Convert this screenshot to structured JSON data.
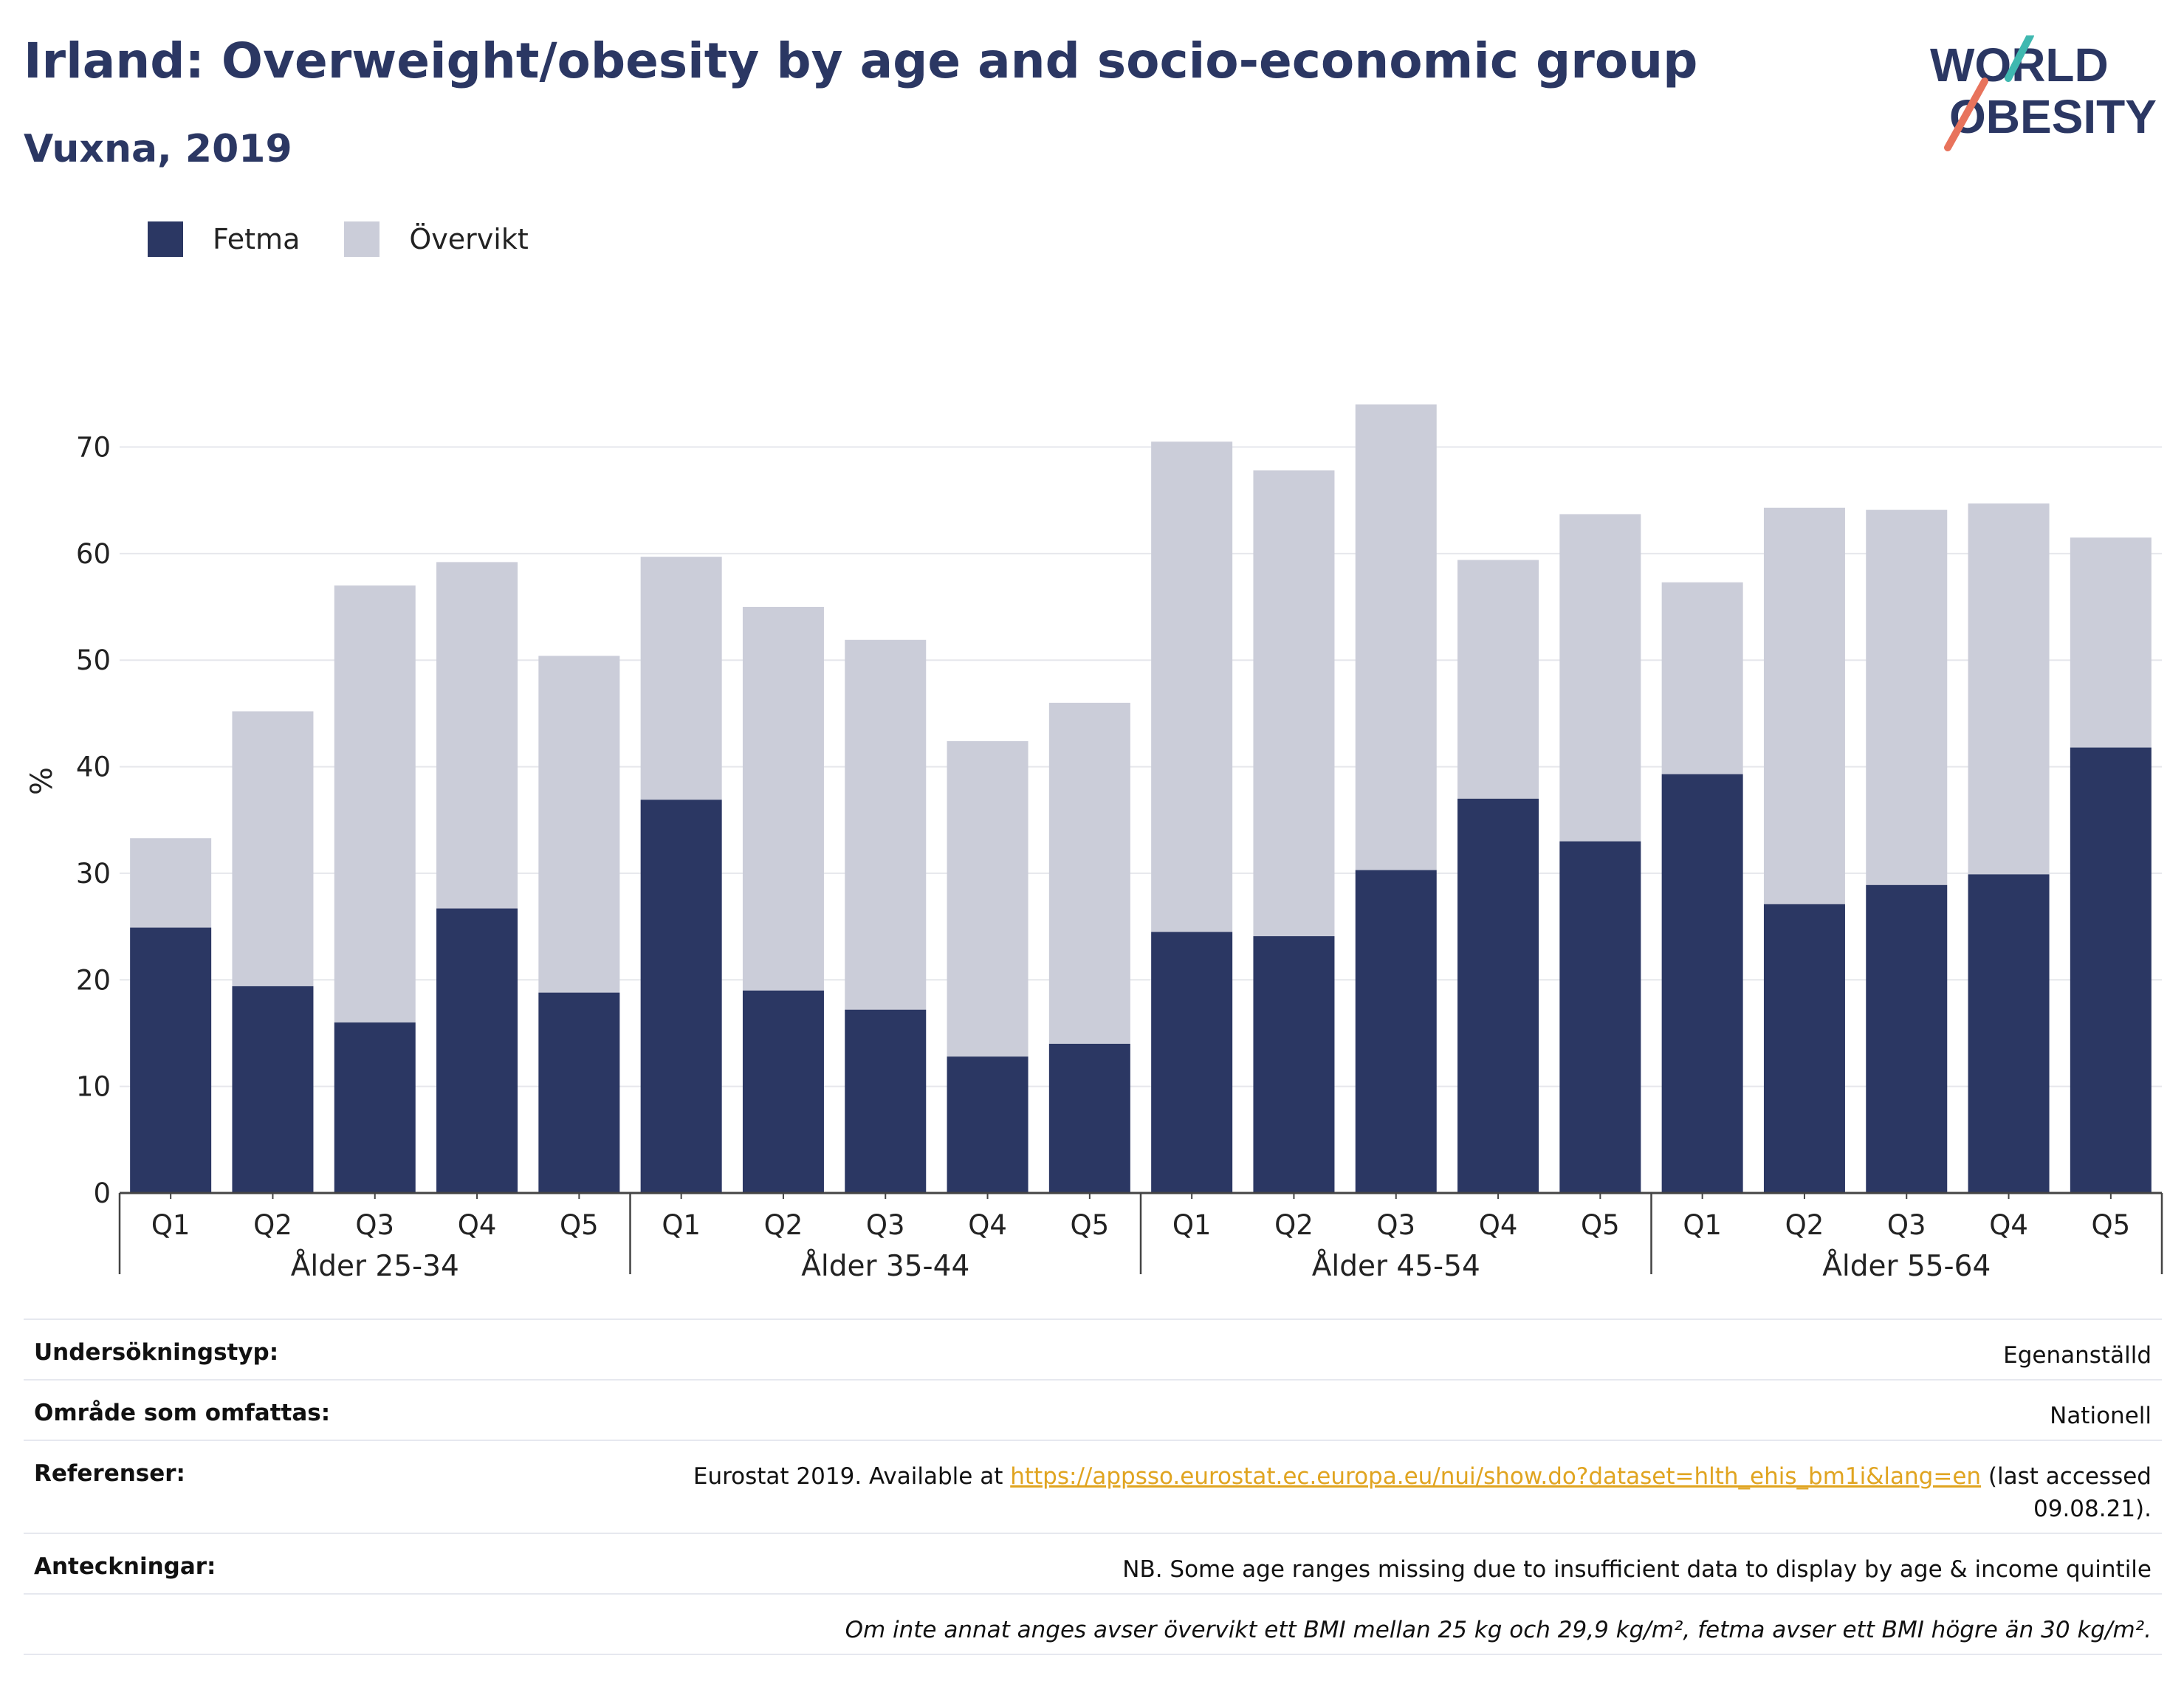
{
  "header": {
    "title": "Irland: Overweight/obesity by age and socio-economic group",
    "subtitle": "Vuxna, 2019"
  },
  "logo": {
    "line1": "WORLD",
    "line2": "OBESITY"
  },
  "colors": {
    "fetma": "#2b3763",
    "overvikt": "#cbcdd9",
    "title": "#2b3763",
    "link": "#e0a420",
    "logo_teal": "#3fb8b0",
    "logo_coral": "#e8735c"
  },
  "chart_data": {
    "type": "bar",
    "stacked": true,
    "title": "Irland: Overweight/obesity by age and socio-economic group",
    "subtitle": "Vuxna, 2019",
    "ylabel": "%",
    "ylim": [
      0,
      78
    ],
    "yticks": [
      0,
      10,
      20,
      30,
      40,
      50,
      60,
      70
    ],
    "grid": true,
    "legend_position": "top-left",
    "groups": [
      {
        "label": "Ålder 25-34",
        "categories": [
          "Q1",
          "Q2",
          "Q3",
          "Q4",
          "Q5"
        ],
        "fetma": [
          24.9,
          19.4,
          16.0,
          26.7,
          18.8
        ],
        "total": [
          33.3,
          45.2,
          57.0,
          59.2,
          50.4
        ]
      },
      {
        "label": "Ålder 35-44",
        "categories": [
          "Q1",
          "Q2",
          "Q3",
          "Q4",
          "Q5"
        ],
        "fetma": [
          36.9,
          19.0,
          17.2,
          12.8,
          14.0
        ],
        "total": [
          59.7,
          55.0,
          51.9,
          42.4,
          46.0
        ]
      },
      {
        "label": "Ålder 45-54",
        "categories": [
          "Q1",
          "Q2",
          "Q3",
          "Q4",
          "Q5"
        ],
        "fetma": [
          24.5,
          24.1,
          30.3,
          37.0,
          33.0
        ],
        "total": [
          70.5,
          67.8,
          74.0,
          59.4,
          63.7
        ]
      },
      {
        "label": "Ålder 55-64",
        "categories": [
          "Q1",
          "Q2",
          "Q3",
          "Q4",
          "Q5"
        ],
        "fetma": [
          39.3,
          27.1,
          28.9,
          29.9,
          41.8
        ],
        "total": [
          57.3,
          64.3,
          64.1,
          64.7,
          61.5
        ]
      }
    ],
    "series": [
      {
        "name": "Fetma",
        "color": "#2b3763"
      },
      {
        "name": "Övervikt",
        "color": "#cbcdd9"
      }
    ]
  },
  "footer": {
    "rows": [
      {
        "label": "Undersökningstyp:",
        "value": "Egenanställd"
      },
      {
        "label": "Område som omfattas:",
        "value": "Nationell"
      },
      {
        "label": "Referenser:",
        "value_pre": "Eurostat 2019. Available at ",
        "link": "https://appsso.eurostat.ec.europa.eu/nui/show.do?dataset=hlth_ehis_bm1i&lang=en",
        "value_post": " (last accessed 09.08.21)."
      },
      {
        "label": "Anteckningar:",
        "value": "NB. Some age ranges missing due to insufficient data to display by age & income quintile"
      }
    ],
    "note": "Om inte annat anges avser övervikt ett BMI mellan 25 kg och 29,9 kg/m², fetma avser ett BMI högre än 30 kg/m²."
  }
}
